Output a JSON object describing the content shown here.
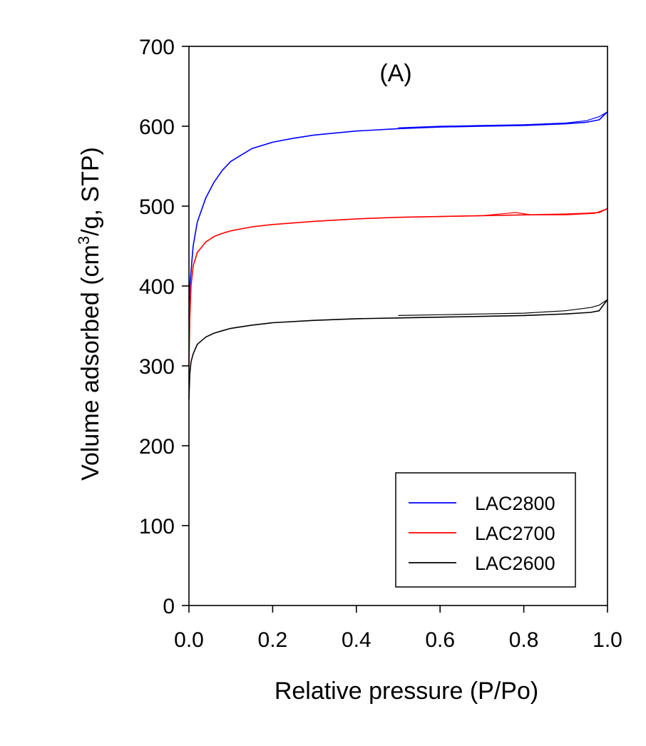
{
  "chart_data": {
    "type": "line",
    "title": "",
    "annotation": "(A)",
    "xlabel": "Relative pressure (P/Po)",
    "ylabel_parts": [
      "Volume adsorbed (cm",
      "3",
      "/g, STP)"
    ],
    "xlim": [
      0,
      1.0
    ],
    "ylim": [
      0,
      700
    ],
    "xticks": [
      0,
      0.2,
      0.4,
      0.6,
      0.8,
      1.0
    ],
    "xtick_labels": [
      "0.0",
      "0.2",
      "0.4",
      "0.6",
      "0.8",
      "1.0"
    ],
    "yticks": [
      0,
      100,
      200,
      300,
      400,
      500,
      600,
      700
    ],
    "ytick_labels": [
      "0",
      "100",
      "200",
      "300",
      "400",
      "500",
      "600",
      "700"
    ],
    "grid": false,
    "legend_position": "bottom-right",
    "series": [
      {
        "name": "LAC2800",
        "color": "#0000ff",
        "adsorption": [
          [
            0.0,
            360
          ],
          [
            0.002,
            400
          ],
          [
            0.01,
            450
          ],
          [
            0.02,
            480
          ],
          [
            0.04,
            510
          ],
          [
            0.06,
            530
          ],
          [
            0.08,
            545
          ],
          [
            0.1,
            556
          ],
          [
            0.15,
            572
          ],
          [
            0.2,
            580
          ],
          [
            0.25,
            585
          ],
          [
            0.3,
            589
          ],
          [
            0.4,
            594
          ],
          [
            0.5,
            597
          ],
          [
            0.6,
            599
          ],
          [
            0.7,
            600
          ],
          [
            0.8,
            601
          ],
          [
            0.9,
            603
          ],
          [
            0.95,
            605
          ],
          [
            0.98,
            608
          ],
          [
            1.0,
            618
          ]
        ],
        "desorption": [
          [
            1.0,
            618
          ],
          [
            0.98,
            612
          ],
          [
            0.95,
            607
          ],
          [
            0.9,
            604
          ],
          [
            0.8,
            602
          ],
          [
            0.7,
            601
          ],
          [
            0.6,
            600
          ],
          [
            0.5,
            598
          ]
        ]
      },
      {
        "name": "LAC2700",
        "color": "#ff0000",
        "adsorption": [
          [
            0.0,
            300
          ],
          [
            0.002,
            360
          ],
          [
            0.005,
            400
          ],
          [
            0.01,
            425
          ],
          [
            0.02,
            442
          ],
          [
            0.04,
            455
          ],
          [
            0.06,
            462
          ],
          [
            0.08,
            466
          ],
          [
            0.1,
            469
          ],
          [
            0.15,
            474
          ],
          [
            0.2,
            477
          ],
          [
            0.3,
            481
          ],
          [
            0.4,
            484
          ],
          [
            0.5,
            486
          ],
          [
            0.6,
            487
          ],
          [
            0.7,
            488
          ],
          [
            0.8,
            489
          ],
          [
            0.9,
            490
          ],
          [
            0.95,
            491
          ],
          [
            0.98,
            492
          ],
          [
            1.0,
            497
          ]
        ],
        "desorption": [
          [
            1.0,
            497
          ],
          [
            0.97,
            491
          ],
          [
            0.9,
            489
          ],
          [
            0.82,
            489
          ],
          [
            0.78,
            492
          ],
          [
            0.74,
            490
          ],
          [
            0.7,
            488
          ],
          [
            0.6,
            487
          ],
          [
            0.5,
            486
          ]
        ]
      },
      {
        "name": "LAC2600",
        "color": "#000000",
        "adsorption": [
          [
            0.0,
            258
          ],
          [
            0.002,
            290
          ],
          [
            0.005,
            305
          ],
          [
            0.01,
            315
          ],
          [
            0.02,
            327
          ],
          [
            0.04,
            336
          ],
          [
            0.06,
            341
          ],
          [
            0.08,
            344
          ],
          [
            0.1,
            347
          ],
          [
            0.15,
            351
          ],
          [
            0.2,
            354
          ],
          [
            0.3,
            357
          ],
          [
            0.4,
            359
          ],
          [
            0.5,
            360
          ],
          [
            0.6,
            361
          ],
          [
            0.7,
            362
          ],
          [
            0.8,
            363
          ],
          [
            0.9,
            365
          ],
          [
            0.96,
            367
          ],
          [
            0.98,
            369
          ],
          [
            1.0,
            383
          ]
        ],
        "desorption": [
          [
            1.0,
            383
          ],
          [
            0.98,
            376
          ],
          [
            0.96,
            373
          ],
          [
            0.9,
            369
          ],
          [
            0.8,
            366
          ],
          [
            0.7,
            365
          ],
          [
            0.6,
            364
          ],
          [
            0.5,
            363
          ]
        ]
      }
    ]
  }
}
